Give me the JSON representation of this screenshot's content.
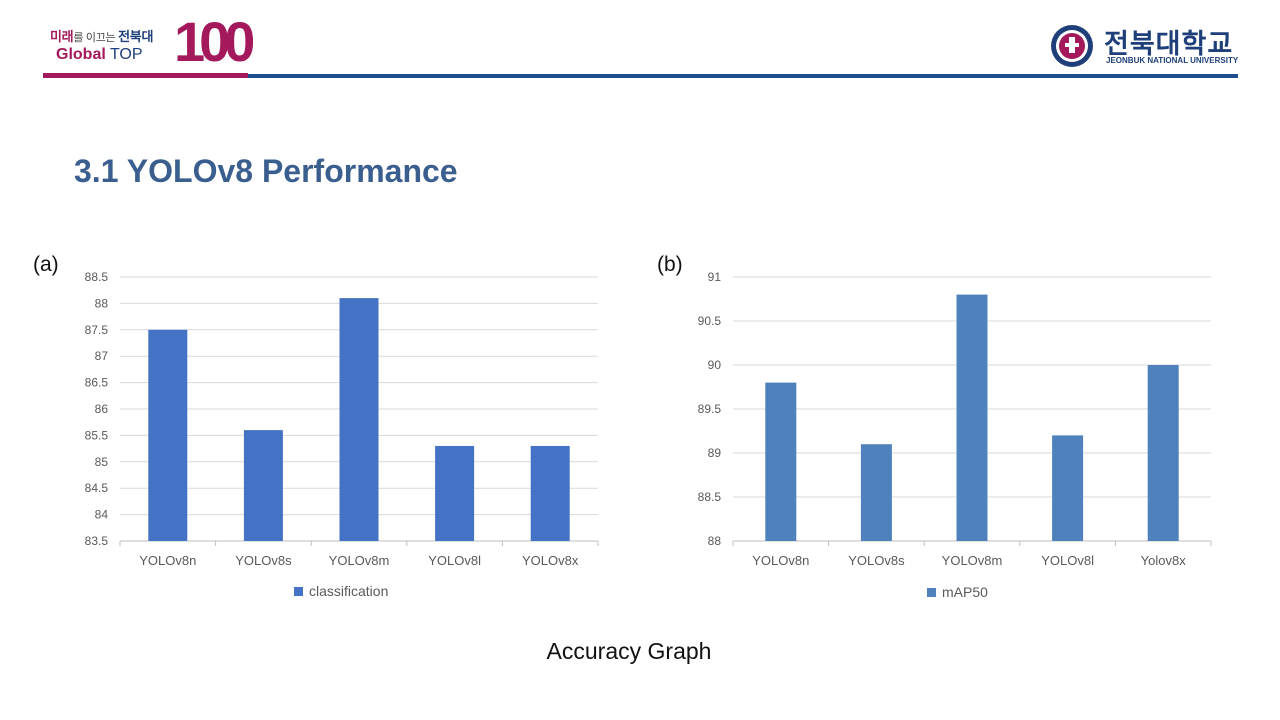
{
  "header": {
    "logo_line1_a": "미래",
    "logo_line1_b": "를 이끄는 ",
    "logo_line1_c": "전북대",
    "logo_global": "Global",
    "logo_top": "TOP",
    "logo_100": "100",
    "university_kr": "전북대학교",
    "university_en": "JEONBUK NATIONAL UNIVERSITY"
  },
  "slide_title": "3.1 YOLOv8 Performance",
  "caption": "Accuracy Graph",
  "colors": {
    "pink": "#a3195b",
    "blue": "#1f4e8c",
    "bar_a": "#4472c4",
    "bar_b": "#4f81bd"
  },
  "chart_data": [
    {
      "panel_label": "(a)",
      "type": "bar",
      "categories": [
        "YOLOv8n",
        "YOLOv8s",
        "YOLOv8m",
        "YOLOv8l",
        "YOLOv8x"
      ],
      "series": [
        {
          "name": "classification",
          "values": [
            87.5,
            85.6,
            88.1,
            85.3,
            85.3
          ]
        }
      ],
      "ylim": [
        83.5,
        88.5
      ],
      "yticks": [
        "83.5",
        "84",
        "84.5",
        "85",
        "85.5",
        "86",
        "86.5",
        "87",
        "87.5",
        "88",
        "88.5"
      ],
      "grid": true,
      "legend": "bottom"
    },
    {
      "panel_label": "(b)",
      "type": "bar",
      "categories": [
        "YOLOv8n",
        "YOLOv8s",
        "YOLOv8m",
        "YOLOv8l",
        "Yolov8x"
      ],
      "series": [
        {
          "name": "mAP50",
          "values": [
            89.8,
            89.1,
            90.8,
            89.2,
            90.0
          ]
        }
      ],
      "ylim": [
        88,
        91
      ],
      "yticks": [
        "88",
        "88.5",
        "89",
        "89.5",
        "90",
        "90.5",
        "91"
      ],
      "grid": true,
      "legend": "bottom"
    }
  ]
}
